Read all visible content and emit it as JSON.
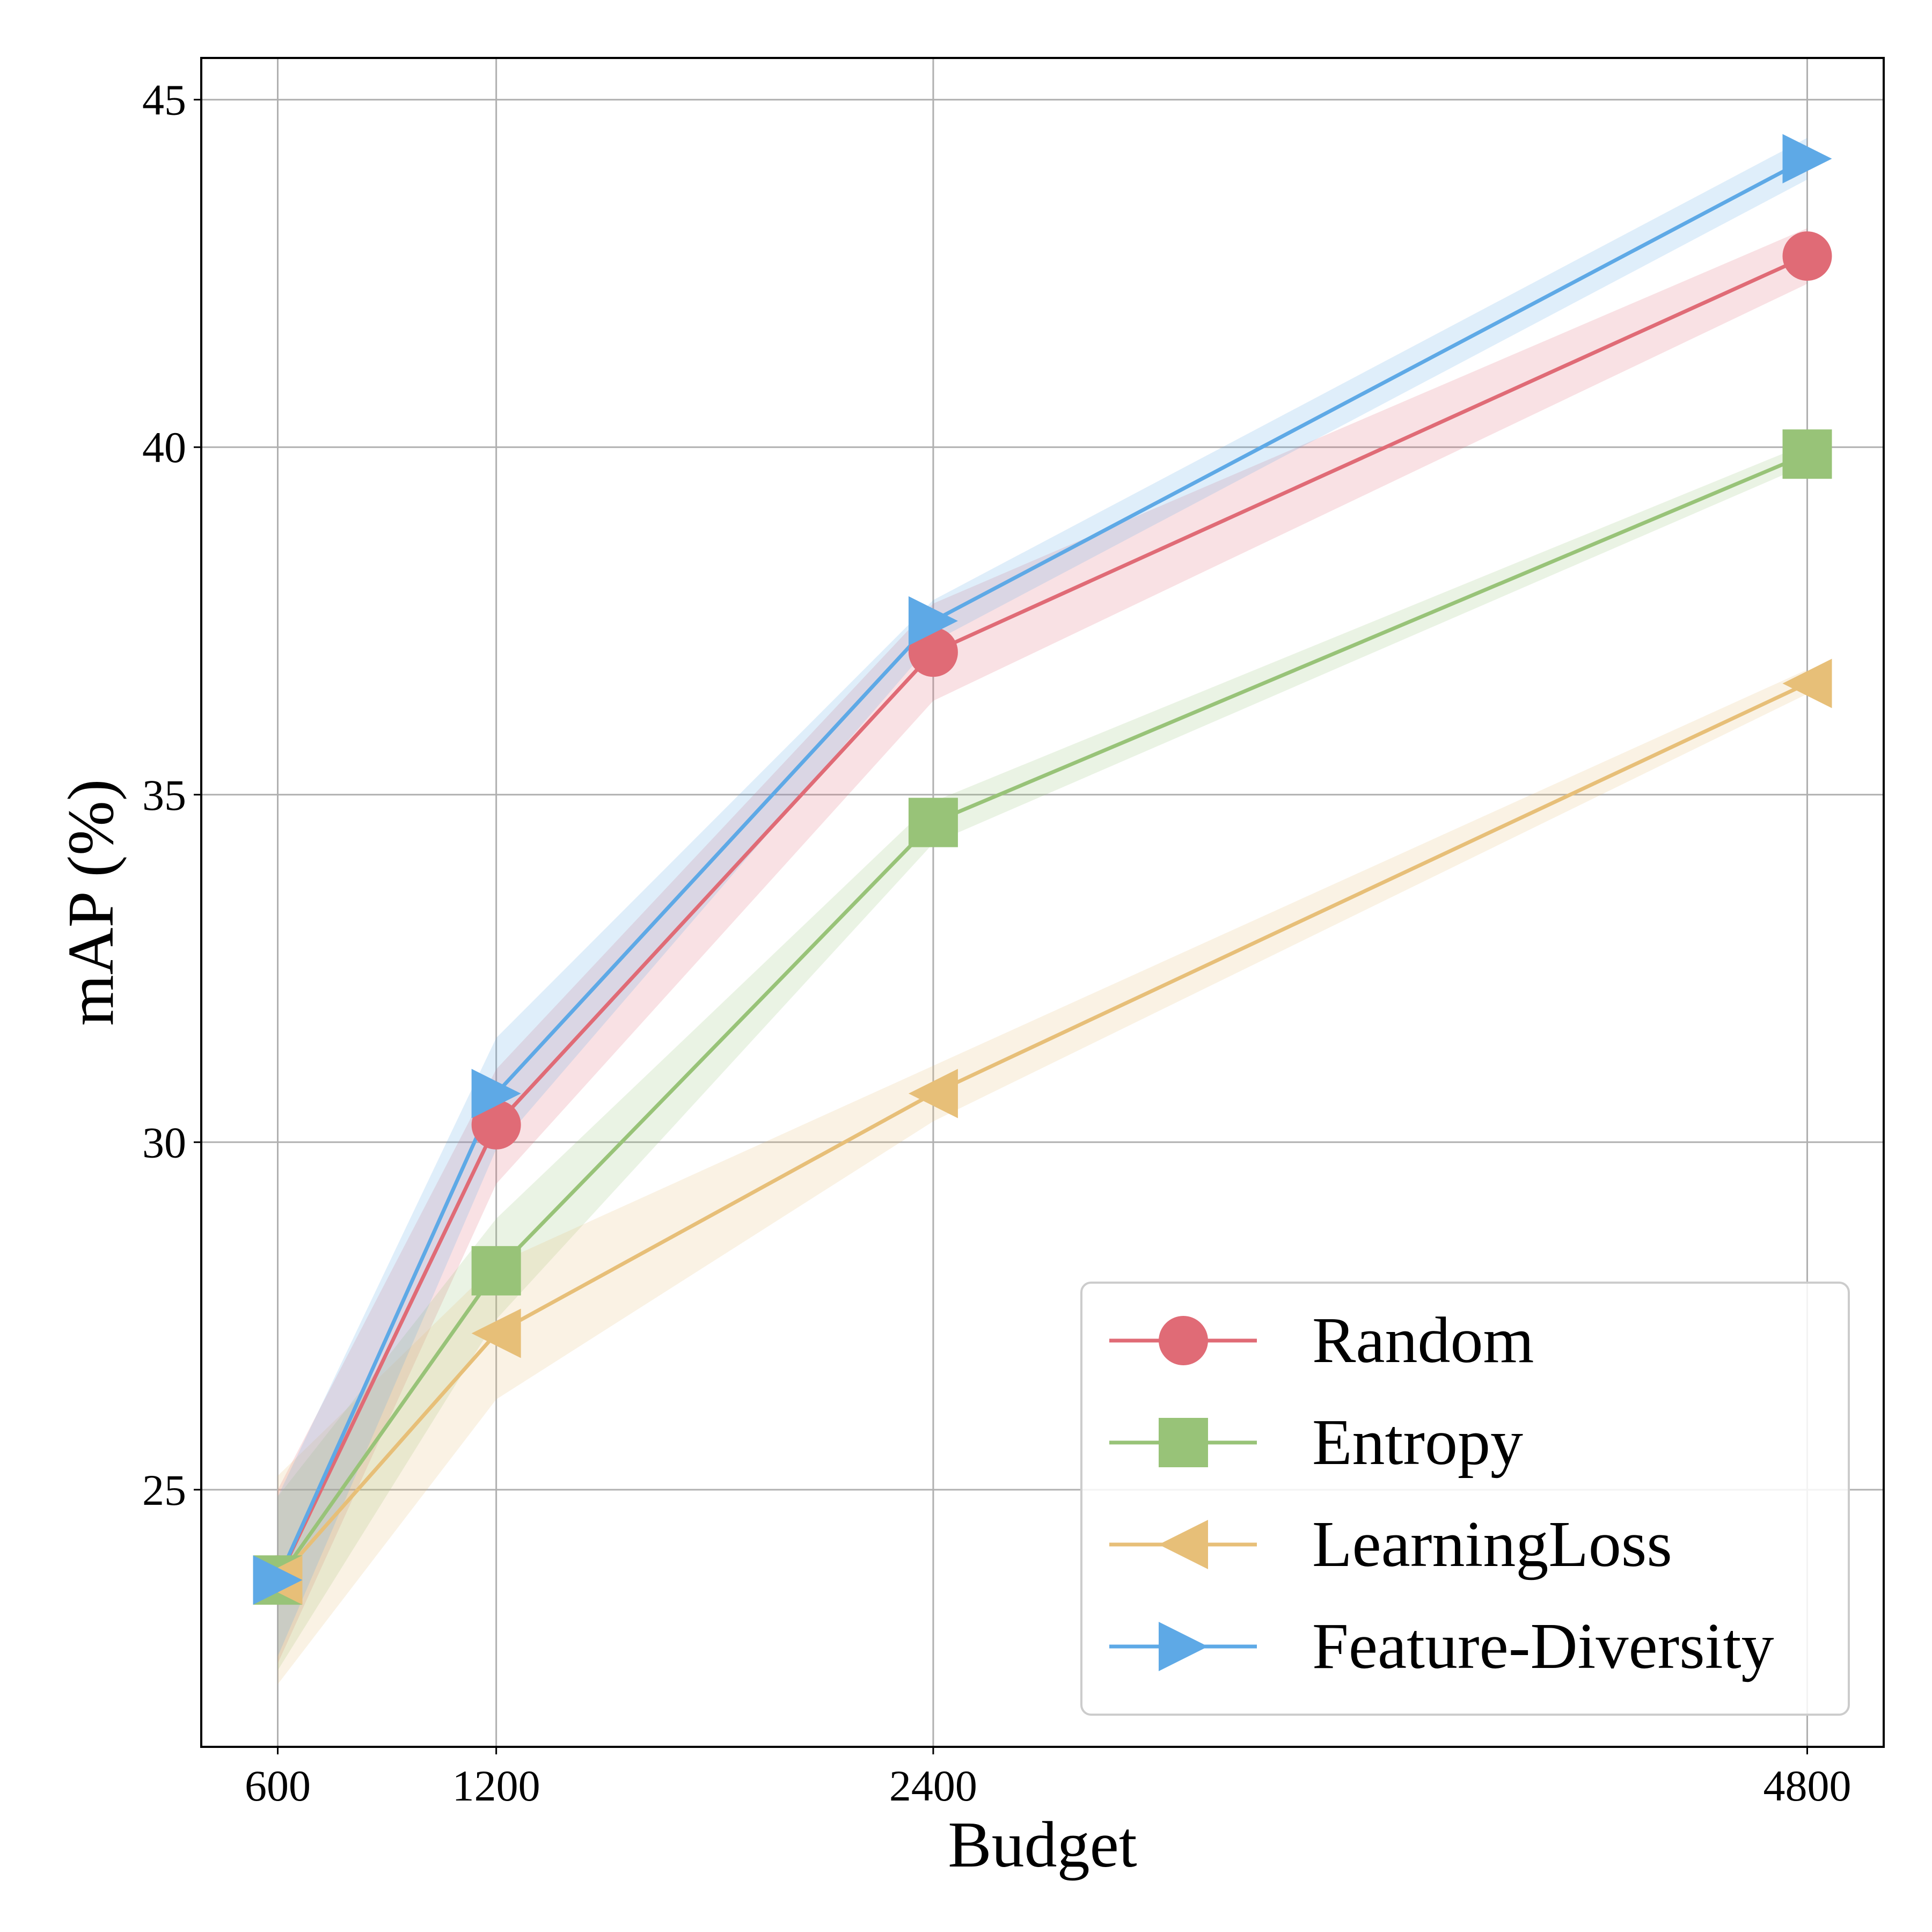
{
  "chart_data": {
    "type": "line",
    "title": "",
    "xlabel": "Budget",
    "ylabel": "mAP (%)",
    "x": [
      600,
      1200,
      2400,
      4800
    ],
    "x_tick_labels": [
      "600",
      "1200",
      "2400",
      "4800"
    ],
    "y_ticks": [
      25,
      30,
      35,
      40,
      45
    ],
    "y_tick_labels": [
      "25",
      "30",
      "35",
      "40",
      "45"
    ],
    "ylim": [
      21.3,
      45.6
    ],
    "xlim": [
      390,
      5010
    ],
    "grid": true,
    "legend_position": "bottom-right",
    "series": [
      {
        "name": "Random",
        "color": "#e06b76",
        "marker": "circle",
        "values": [
          23.7,
          30.25,
          37.05,
          42.75
        ],
        "lower": [
          22.5,
          29.4,
          36.35,
          42.35
        ],
        "upper": [
          25.0,
          31.05,
          37.75,
          43.15
        ]
      },
      {
        "name": "Entropy",
        "color": "#98c378",
        "marker": "square",
        "values": [
          23.7,
          28.15,
          34.6,
          39.9
        ],
        "lower": [
          22.4,
          27.45,
          34.3,
          39.75
        ],
        "upper": [
          24.9,
          28.9,
          34.9,
          40.05
        ]
      },
      {
        "name": "LearningLoss",
        "color": "#e7bf78",
        "marker": "triangle-left",
        "values": [
          23.7,
          27.25,
          30.7,
          36.6
        ],
        "lower": [
          22.2,
          26.3,
          30.3,
          36.45
        ],
        "upper": [
          25.2,
          28.25,
          31.1,
          36.8
        ]
      },
      {
        "name": "Feature-Diversity",
        "color": "#5ea9e6",
        "marker": "triangle-right",
        "values": [
          23.7,
          30.7,
          37.5,
          44.15
        ],
        "lower": [
          22.6,
          29.9,
          37.2,
          43.85
        ],
        "upper": [
          24.9,
          31.5,
          37.8,
          44.45
        ]
      }
    ]
  }
}
